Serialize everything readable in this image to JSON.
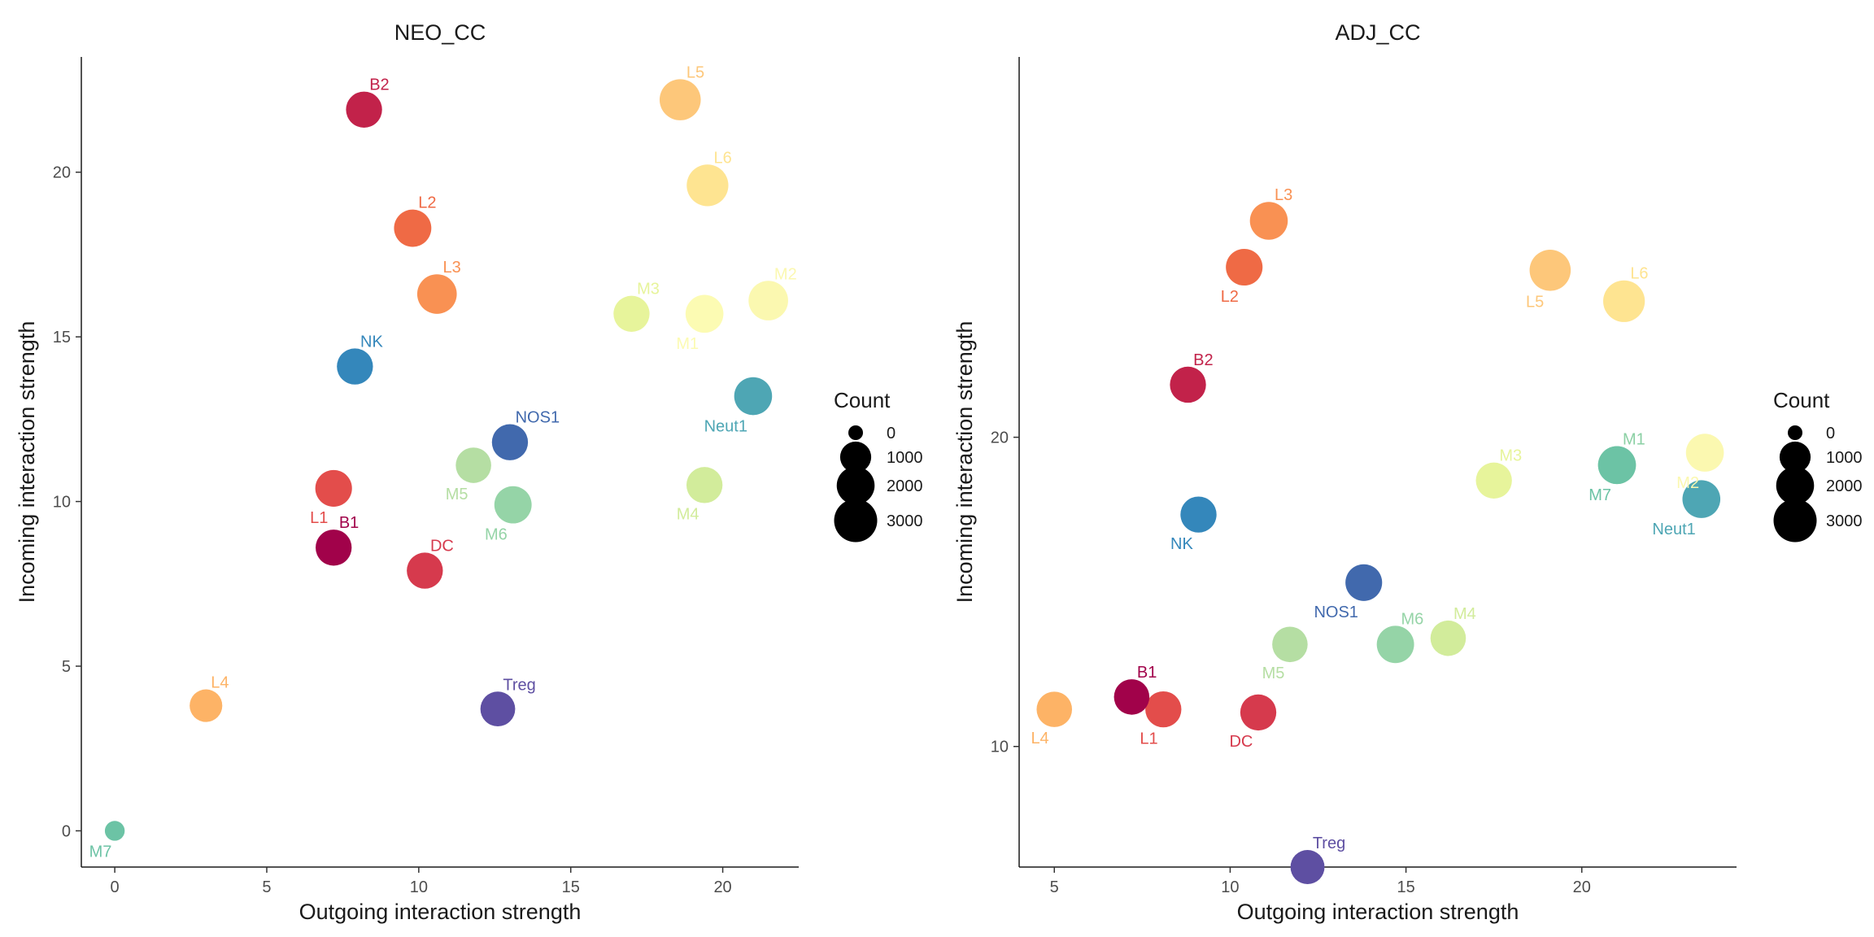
{
  "chart_data": [
    {
      "type": "scatter",
      "title": "NEO_CC",
      "xlabel": "Outgoing interaction strength",
      "ylabel": "Incoming interaction strength",
      "xlim": [
        -1.1,
        22.5
      ],
      "ylim": [
        -1.1,
        23.5
      ],
      "xticks": [
        0,
        5,
        10,
        15,
        20
      ],
      "yticks": [
        0,
        5,
        10,
        15,
        20
      ],
      "grid": false,
      "legend": {
        "title": "Count",
        "position": "right",
        "sizes": [
          0,
          1000,
          2000,
          3000
        ],
        "labels": [
          "0",
          "1000",
          "2000",
          "3000"
        ]
      },
      "points": [
        {
          "label": "B2",
          "x": 8.2,
          "y": 21.9,
          "count": 1700,
          "color": "#c2224a",
          "label_pos": "above"
        },
        {
          "label": "L5",
          "x": 18.6,
          "y": 22.2,
          "count": 2600,
          "color": "#fdc77a",
          "label_pos": "above"
        },
        {
          "label": "L6",
          "x": 19.5,
          "y": 19.6,
          "count": 2700,
          "color": "#fee491",
          "label_pos": "above"
        },
        {
          "label": "L2",
          "x": 9.8,
          "y": 18.3,
          "count": 1900,
          "color": "#ef6a45",
          "label_pos": "above"
        },
        {
          "label": "L3",
          "x": 10.6,
          "y": 16.3,
          "count": 2300,
          "color": "#f99153",
          "label_pos": "above"
        },
        {
          "label": "M3",
          "x": 17.0,
          "y": 15.7,
          "count": 1700,
          "color": "#e7f49b",
          "label_pos": "above"
        },
        {
          "label": "M1",
          "x": 19.4,
          "y": 15.7,
          "count": 2000,
          "color": "#fcfbb3",
          "label_pos": "below"
        },
        {
          "label": "M2",
          "x": 21.5,
          "y": 16.1,
          "count": 2300,
          "color": "#fbf8b0",
          "label_pos": "above"
        },
        {
          "label": "NK",
          "x": 7.9,
          "y": 14.1,
          "count": 1700,
          "color": "#3487bb",
          "label_pos": "above"
        },
        {
          "label": "Neut1",
          "x": 21.0,
          "y": 13.2,
          "count": 2000,
          "color": "#4ea6b4",
          "label_pos": "below"
        },
        {
          "label": "NOS1",
          "x": 13.0,
          "y": 11.8,
          "count": 1700,
          "color": "#4169ad",
          "label_pos": "above"
        },
        {
          "label": "M5",
          "x": 11.8,
          "y": 11.1,
          "count": 1600,
          "color": "#b5dea3",
          "label_pos": "below"
        },
        {
          "label": "L1",
          "x": 7.2,
          "y": 10.4,
          "count": 1800,
          "color": "#e34d4b",
          "label_pos": "below"
        },
        {
          "label": "M6",
          "x": 13.1,
          "y": 9.9,
          "count": 1900,
          "color": "#95d4a7",
          "label_pos": "below"
        },
        {
          "label": "M4",
          "x": 19.4,
          "y": 10.5,
          "count": 1700,
          "color": "#d2ec9b",
          "label_pos": "below"
        },
        {
          "label": "B1",
          "x": 7.2,
          "y": 8.6,
          "count": 1700,
          "color": "#a1024a",
          "label_pos": "above"
        },
        {
          "label": "DC",
          "x": 10.2,
          "y": 7.9,
          "count": 1700,
          "color": "#d63a4d",
          "label_pos": "above"
        },
        {
          "label": "L4",
          "x": 3.0,
          "y": 3.8,
          "count": 1200,
          "color": "#fdb366",
          "label_pos": "above"
        },
        {
          "label": "Treg",
          "x": 12.6,
          "y": 3.7,
          "count": 1500,
          "color": "#5e4fa2",
          "label_pos": "above"
        },
        {
          "label": "M7",
          "x": 0.0,
          "y": 0.0,
          "count": 100,
          "color": "#6cc3a5",
          "label_pos": "below"
        }
      ]
    },
    {
      "type": "scatter",
      "title": "ADJ_CC",
      "xlabel": "Outgoing interaction strength",
      "ylabel": "Incoming interaction strength",
      "xlim": [
        4.0,
        24.4
      ],
      "ylim": [
        6.1,
        32.3
      ],
      "xticks": [
        5,
        10,
        15,
        20
      ],
      "yticks": [
        10,
        20
      ],
      "grid": false,
      "legend": {
        "title": "Count",
        "position": "right",
        "sizes": [
          0,
          1000,
          2000,
          3000
        ],
        "labels": [
          "0",
          "1000",
          "2000",
          "3000"
        ]
      },
      "points": [
        {
          "label": "L3",
          "x": 11.1,
          "y": 27.0,
          "count": 2000,
          "color": "#f99153",
          "label_pos": "above"
        },
        {
          "label": "L2",
          "x": 10.4,
          "y": 25.5,
          "count": 1800,
          "color": "#ef6a45",
          "label_pos": "below"
        },
        {
          "label": "L5",
          "x": 19.1,
          "y": 25.4,
          "count": 2600,
          "color": "#fdc77a",
          "label_pos": "below"
        },
        {
          "label": "L6",
          "x": 21.2,
          "y": 24.4,
          "count": 2700,
          "color": "#fee491",
          "label_pos": "above"
        },
        {
          "label": "B2",
          "x": 8.8,
          "y": 21.7,
          "count": 1700,
          "color": "#c2224a",
          "label_pos": "above"
        },
        {
          "label": "M3",
          "x": 17.5,
          "y": 18.6,
          "count": 1700,
          "color": "#e7f49b",
          "label_pos": "above"
        },
        {
          "label": "M1",
          "x": 21.0,
          "y": 19.1,
          "count": 2000,
          "color": "#8bd0a4",
          "label_pos": "above"
        },
        {
          "label": "M7",
          "x": 21.0,
          "y": 19.1,
          "count": 2000,
          "color": "#6cc3a5",
          "label_pos": "below"
        },
        {
          "label": "M2",
          "x": 23.5,
          "y": 19.5,
          "count": 2000,
          "color": "#fbf8b0",
          "label_pos": "below"
        },
        {
          "label": "Neut1",
          "x": 23.4,
          "y": 18.0,
          "count": 2000,
          "color": "#4ea6b4",
          "label_pos": "below"
        },
        {
          "label": "NK",
          "x": 9.1,
          "y": 17.5,
          "count": 1700,
          "color": "#3487bb",
          "label_pos": "below"
        },
        {
          "label": "NOS1",
          "x": 13.8,
          "y": 15.3,
          "count": 1800,
          "color": "#4169ad",
          "label_pos": "below"
        },
        {
          "label": "M5",
          "x": 11.7,
          "y": 13.3,
          "count": 1600,
          "color": "#b5dea3",
          "label_pos": "below"
        },
        {
          "label": "M6",
          "x": 14.7,
          "y": 13.3,
          "count": 1900,
          "color": "#95d4a7",
          "label_pos": "above"
        },
        {
          "label": "M4",
          "x": 16.2,
          "y": 13.5,
          "count": 1600,
          "color": "#d2ec9b",
          "label_pos": "above"
        },
        {
          "label": "B1",
          "x": 7.2,
          "y": 11.6,
          "count": 1600,
          "color": "#a1024a",
          "label_pos": "above"
        },
        {
          "label": "L1",
          "x": 8.1,
          "y": 11.2,
          "count": 1700,
          "color": "#e34d4b",
          "label_pos": "below"
        },
        {
          "label": "DC",
          "x": 10.8,
          "y": 11.1,
          "count": 1700,
          "color": "#d63a4d",
          "label_pos": "below"
        },
        {
          "label": "L4",
          "x": 5.0,
          "y": 11.2,
          "count": 1600,
          "color": "#fdb366",
          "label_pos": "below"
        },
        {
          "label": "Treg",
          "x": 12.2,
          "y": 6.1,
          "count": 1400,
          "color": "#5e4fa2",
          "label_pos": "above"
        }
      ]
    }
  ]
}
